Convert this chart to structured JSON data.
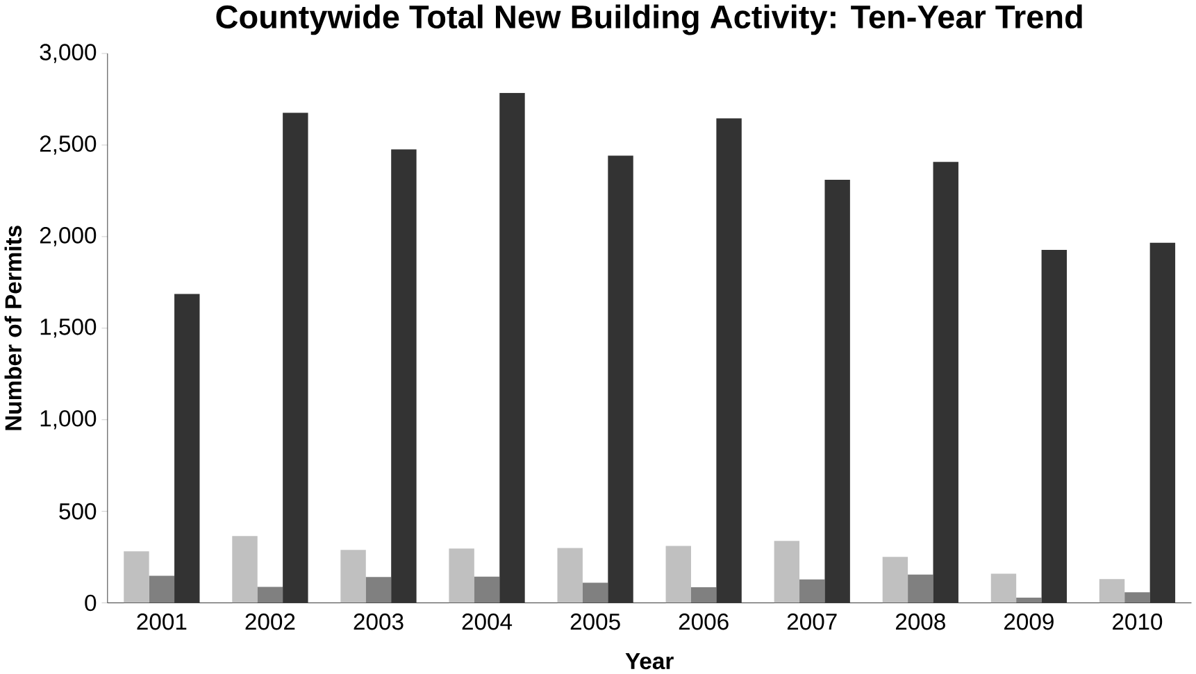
{
  "chart_data": {
    "type": "bar",
    "title": "Countywide Total New Building Activity: Ten-Year Trend",
    "xlabel": "Year",
    "ylabel": "Number of Permits",
    "categories": [
      "2001",
      "2002",
      "2003",
      "2004",
      "2005",
      "2006",
      "2007",
      "2008",
      "2009",
      "2010"
    ],
    "series": [
      {
        "color": "#c0c0c0",
        "values": [
          282,
          365,
          289,
          297,
          300,
          311,
          338,
          251,
          159,
          130
        ]
      },
      {
        "color": "#808080",
        "values": [
          148,
          87,
          141,
          143,
          110,
          85,
          128,
          155,
          29,
          58
        ]
      },
      {
        "color": "#333333",
        "values": [
          1687,
          2676,
          2476,
          2785,
          2442,
          2646,
          2310,
          2408,
          1928,
          1966
        ]
      }
    ],
    "ylim": [
      0,
      3000
    ],
    "yticks": [
      {
        "value": 0,
        "label": "0"
      },
      {
        "value": 500,
        "label": "500"
      },
      {
        "value": 1000,
        "label": "1,000"
      },
      {
        "value": 1500,
        "label": "1,500"
      },
      {
        "value": 2000,
        "label": "2,000"
      },
      {
        "value": 2500,
        "label": "2,500"
      },
      {
        "value": 3000,
        "label": "3,000"
      }
    ]
  }
}
